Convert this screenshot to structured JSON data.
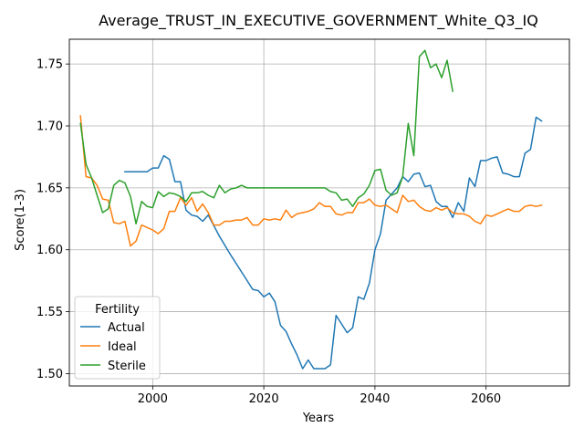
{
  "chart_data": {
    "type": "line",
    "title": "Average_TRUST_IN_EXECUTIVE_GOVERNMENT_White_Q3_IQ",
    "xlabel": "Years",
    "ylabel": "Score(1-3)",
    "xlim": [
      1985,
      2075
    ],
    "ylim": [
      1.49,
      1.77
    ],
    "xticks": [
      2000,
      2020,
      2040,
      2060
    ],
    "yticks": [
      1.5,
      1.55,
      1.6,
      1.65,
      1.7,
      1.75
    ],
    "ytick_labels": [
      "1.50",
      "1.55",
      "1.60",
      "1.65",
      "1.70",
      "1.75"
    ],
    "grid": true,
    "legend": {
      "title": "Fertility",
      "position": "lower-left"
    },
    "series": [
      {
        "name": "Actual",
        "color": "#1f77b4",
        "x": [
          1995,
          1996,
          1997,
          1998,
          1999,
          2000,
          2001,
          2002,
          2003,
          2004,
          2005,
          2006,
          2007,
          2008,
          2009,
          2010,
          2012,
          2014,
          2016,
          2018,
          2019,
          2020,
          2021,
          2022,
          2023,
          2024,
          2025,
          2026,
          2027,
          2028,
          2029,
          2030,
          2031,
          2032,
          2033,
          2034,
          2035,
          2036,
          2037,
          2038,
          2039,
          2040,
          2041,
          2042,
          2043,
          2044,
          2045,
          2046,
          2047,
          2048,
          2049,
          2050,
          2051,
          2052,
          2053,
          2054,
          2055,
          2056,
          2057,
          2058,
          2059,
          2060,
          2061,
          2062,
          2063,
          2064,
          2065,
          2066,
          2067,
          2068,
          2069,
          2070
        ],
        "y": [
          1.663,
          1.663,
          1.663,
          1.663,
          1.663,
          1.666,
          1.666,
          1.676,
          1.673,
          1.655,
          1.655,
          1.632,
          1.628,
          1.627,
          1.623,
          1.628,
          1.611,
          1.596,
          1.582,
          1.568,
          1.567,
          1.562,
          1.565,
          1.558,
          1.539,
          1.534,
          1.524,
          1.515,
          1.504,
          1.511,
          1.504,
          1.504,
          1.504,
          1.507,
          1.547,
          1.54,
          1.533,
          1.537,
          1.562,
          1.56,
          1.573,
          1.6,
          1.613,
          1.64,
          1.645,
          1.65,
          1.659,
          1.655,
          1.661,
          1.662,
          1.651,
          1.652,
          1.639,
          1.635,
          1.635,
          1.626,
          1.638,
          1.631,
          1.658,
          1.651,
          1.672,
          1.672,
          1.674,
          1.675,
          1.662,
          1.661,
          1.659,
          1.659,
          1.678,
          1.681,
          1.707,
          1.704
        ]
      },
      {
        "name": "Ideal",
        "color": "#ff7f0e",
        "x": [
          1987,
          1988,
          1989,
          1990,
          1991,
          1992,
          1993,
          1994,
          1995,
          1996,
          1997,
          1998,
          1999,
          2000,
          2001,
          2002,
          2003,
          2004,
          2005,
          2006,
          2007,
          2008,
          2009,
          2010,
          2011,
          2012,
          2013,
          2014,
          2015,
          2016,
          2017,
          2018,
          2019,
          2020,
          2021,
          2022,
          2023,
          2024,
          2025,
          2026,
          2027,
          2028,
          2029,
          2030,
          2031,
          2032,
          2033,
          2034,
          2035,
          2036,
          2037,
          2038,
          2039,
          2040,
          2041,
          2042,
          2043,
          2044,
          2045,
          2046,
          2047,
          2048,
          2049,
          2050,
          2051,
          2052,
          2053,
          2054,
          2055,
          2056,
          2057,
          2058,
          2059,
          2060,
          2061,
          2062,
          2063,
          2064,
          2065,
          2066,
          2067,
          2068,
          2069,
          2070
        ],
        "y": [
          1.708,
          1.659,
          1.658,
          1.652,
          1.641,
          1.64,
          1.622,
          1.621,
          1.623,
          1.603,
          1.607,
          1.62,
          1.618,
          1.616,
          1.613,
          1.617,
          1.631,
          1.631,
          1.642,
          1.636,
          1.642,
          1.631,
          1.637,
          1.63,
          1.62,
          1.62,
          1.623,
          1.623,
          1.624,
          1.624,
          1.626,
          1.62,
          1.62,
          1.625,
          1.624,
          1.625,
          1.624,
          1.632,
          1.626,
          1.629,
          1.63,
          1.631,
          1.633,
          1.638,
          1.635,
          1.635,
          1.629,
          1.628,
          1.63,
          1.63,
          1.638,
          1.638,
          1.641,
          1.636,
          1.635,
          1.636,
          1.633,
          1.63,
          1.644,
          1.639,
          1.64,
          1.635,
          1.632,
          1.631,
          1.634,
          1.632,
          1.634,
          1.63,
          1.629,
          1.629,
          1.627,
          1.623,
          1.621,
          1.628,
          1.627,
          1.629,
          1.631,
          1.633,
          1.631,
          1.631,
          1.635,
          1.636,
          1.635,
          1.636
        ]
      },
      {
        "name": "Sterile",
        "color": "#2ca02c",
        "x": [
          1987,
          1988,
          1989,
          1990,
          1991,
          1992,
          1993,
          1994,
          1995,
          1996,
          1997,
          1998,
          1999,
          2000,
          2001,
          2002,
          2003,
          2004,
          2005,
          2006,
          2007,
          2008,
          2009,
          2010,
          2011,
          2012,
          2013,
          2014,
          2015,
          2016,
          2017,
          2018,
          2019,
          2020,
          2021,
          2022,
          2023,
          2024,
          2025,
          2026,
          2027,
          2028,
          2029,
          2030,
          2031,
          2032,
          2033,
          2034,
          2035,
          2036,
          2037,
          2038,
          2039,
          2040,
          2041,
          2042,
          2043,
          2044,
          2045,
          2046,
          2047,
          2048,
          2049,
          2050,
          2051,
          2052,
          2053,
          2054
        ],
        "y": [
          1.702,
          1.669,
          1.658,
          1.644,
          1.63,
          1.633,
          1.652,
          1.656,
          1.654,
          1.643,
          1.621,
          1.639,
          1.635,
          1.634,
          1.647,
          1.643,
          1.646,
          1.645,
          1.643,
          1.639,
          1.646,
          1.646,
          1.647,
          1.644,
          1.642,
          1.652,
          1.646,
          1.649,
          1.65,
          1.652,
          1.65,
          1.65,
          1.65,
          1.65,
          1.65,
          1.65,
          1.65,
          1.65,
          1.65,
          1.65,
          1.65,
          1.65,
          1.65,
          1.65,
          1.65,
          1.647,
          1.646,
          1.64,
          1.641,
          1.635,
          1.642,
          1.645,
          1.652,
          1.664,
          1.665,
          1.648,
          1.644,
          1.646,
          1.659,
          1.702,
          1.676,
          1.756,
          1.761,
          1.747,
          1.75,
          1.739,
          1.753,
          1.728
        ]
      }
    ]
  }
}
